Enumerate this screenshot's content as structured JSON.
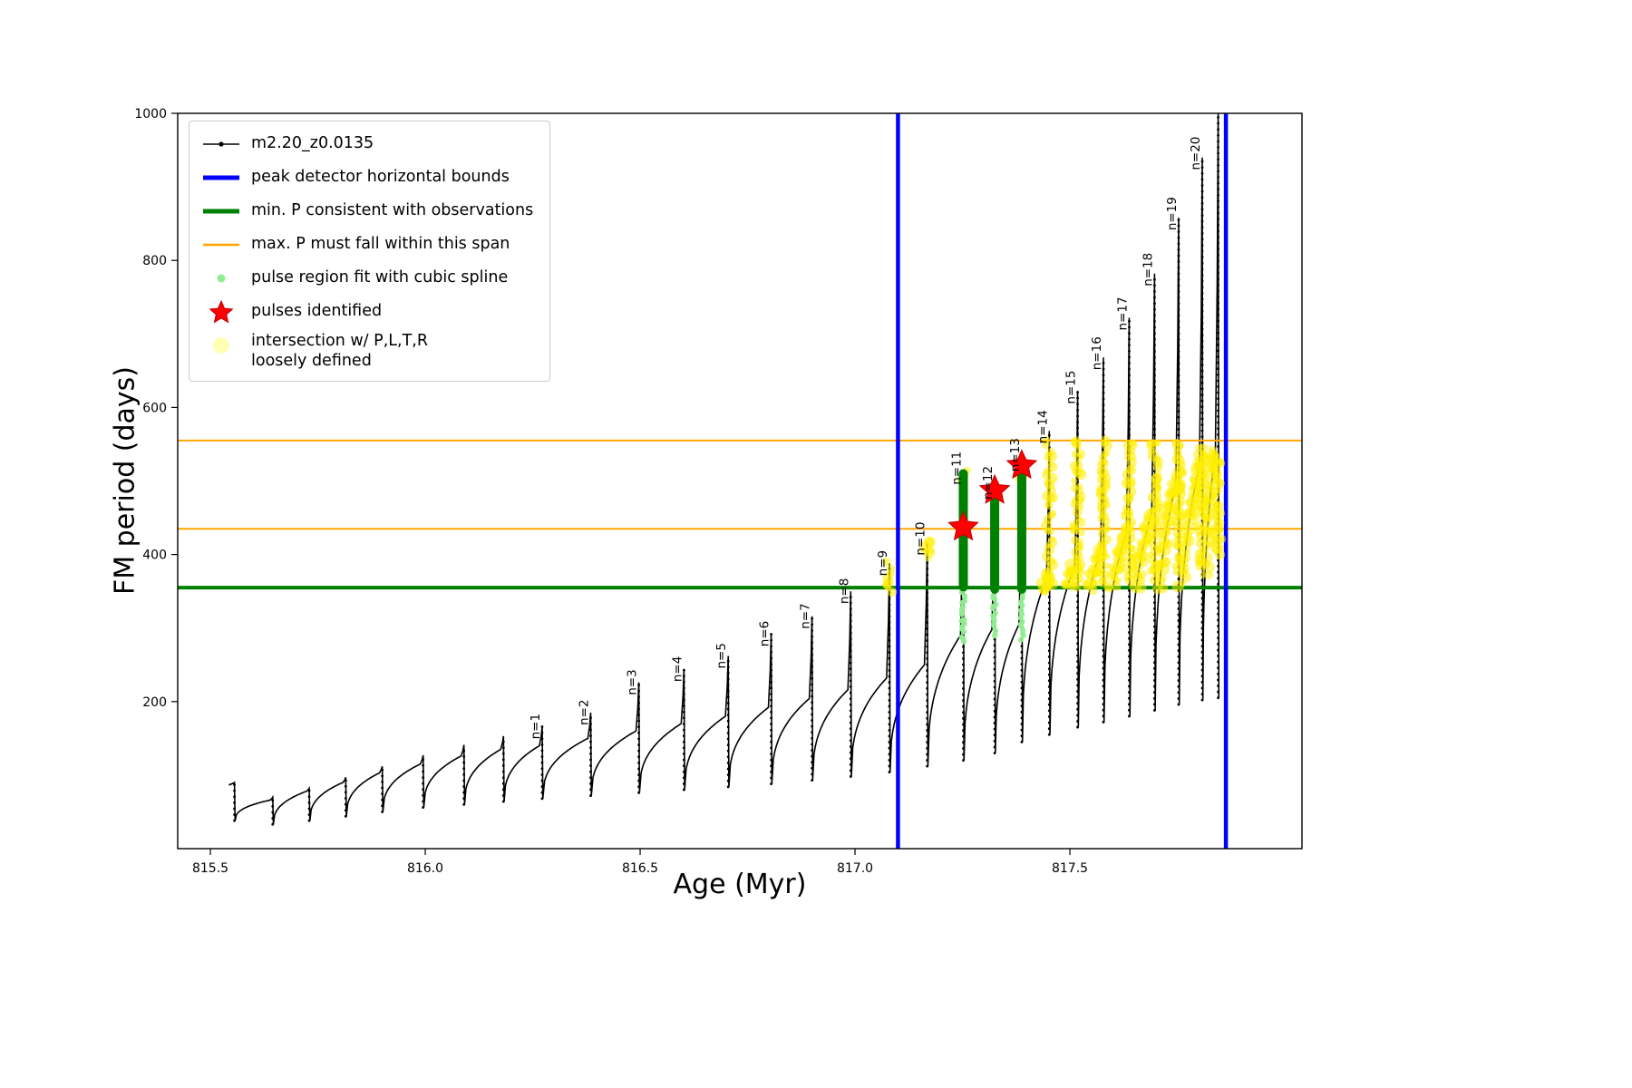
{
  "figure": {
    "xlabel": "Age (Myr)",
    "ylabel": "FM period (days)"
  },
  "legend": {
    "items": [
      {
        "label": "m2.20_z0.0135",
        "swatch": "line-dot"
      },
      {
        "label": "peak detector horizontal bounds",
        "swatch": "blue-line"
      },
      {
        "label": "min. P consistent with observations",
        "swatch": "green-line"
      },
      {
        "label": "max. P must fall within this span",
        "swatch": "orange-line"
      },
      {
        "label": "pulse region fit with cubic spline",
        "swatch": "lightgreen-dot"
      },
      {
        "label": "pulses identified",
        "swatch": "red-star"
      },
      {
        "label": "intersection w/ P,L,T,R",
        "label2": "loosely defined",
        "swatch": "yellow-dot"
      }
    ]
  },
  "chart_data": {
    "type": "line",
    "title": "",
    "series_label": "m2.20_z0.0135",
    "xlabel": "Age (Myr)",
    "ylabel": "FM period (days)",
    "xlim": [
      815.424,
      818.04
    ],
    "ylim": [
      0,
      1000
    ],
    "xticks": [
      815.5,
      816.0,
      816.5,
      817.0,
      817.5
    ],
    "yticks": [
      200,
      400,
      600,
      800,
      1000
    ],
    "grid": false,
    "legend_position": "upper left",
    "colors": {
      "series": "#000000",
      "blue": "#0000ff",
      "green": "#008000",
      "orange": "#ffa500",
      "lightgreen": "#90ee90",
      "yellow": "#ffef00",
      "yellow_pale": "#ffffb3",
      "red": "#ff0000"
    },
    "vlines_blue": [
      817.1,
      817.863
    ],
    "hline_green": 355,
    "hlines_orange": [
      435,
      555
    ],
    "pulses": [
      {
        "label": "",
        "age": 815.556,
        "peak": 90,
        "knee": 88,
        "dip_after": 38
      },
      {
        "label": "",
        "age": 815.645,
        "peak": 70,
        "knee": 66,
        "dip_after": 33
      },
      {
        "label": "",
        "age": 815.73,
        "peak": 82,
        "knee": 78,
        "dip_after": 38
      },
      {
        "label": "",
        "age": 815.815,
        "peak": 97,
        "knee": 90,
        "dip_after": 44
      },
      {
        "label": "",
        "age": 815.9,
        "peak": 112,
        "knee": 103,
        "dip_after": 50
      },
      {
        "label": "",
        "age": 815.995,
        "peak": 127,
        "knee": 115,
        "dip_after": 56
      },
      {
        "label": "",
        "age": 816.09,
        "peak": 141,
        "knee": 126,
        "dip_after": 60
      },
      {
        "label": "",
        "age": 816.182,
        "peak": 153,
        "knee": 135,
        "dip_after": 64
      },
      {
        "label": "n=1",
        "age": 816.272,
        "peak": 166,
        "knee": 140,
        "dip_after": 68
      },
      {
        "label": "n=2",
        "age": 816.385,
        "peak": 185,
        "knee": 150,
        "dip_after": 72
      },
      {
        "label": "n=3",
        "age": 816.497,
        "peak": 226,
        "knee": 160,
        "dip_after": 76
      },
      {
        "label": "n=4",
        "age": 816.602,
        "peak": 244,
        "knee": 170,
        "dip_after": 80
      },
      {
        "label": "n=5",
        "age": 816.705,
        "peak": 262,
        "knee": 180,
        "dip_after": 84
      },
      {
        "label": "n=6",
        "age": 816.805,
        "peak": 292,
        "knee": 192,
        "dip_after": 88
      },
      {
        "label": "n=7",
        "age": 816.9,
        "peak": 316,
        "knee": 204,
        "dip_after": 93
      },
      {
        "label": "n=8",
        "age": 816.99,
        "peak": 350,
        "knee": 216,
        "dip_after": 98
      },
      {
        "label": "n=9",
        "age": 817.08,
        "peak": 388,
        "knee": 232,
        "dip_after": 104
      },
      {
        "label": "n=10",
        "age": 817.168,
        "peak": 416,
        "knee": 250,
        "dip_after": 112
      },
      {
        "label": "n=11",
        "age": 817.252,
        "peak": 512,
        "knee": 290,
        "dip_after": 120
      },
      {
        "label": "n=12",
        "age": 817.325,
        "peak": 492,
        "knee": 298,
        "dip_after": 130
      },
      {
        "label": "n=13",
        "age": 817.388,
        "peak": 530,
        "knee": 305,
        "dip_after": 145
      },
      {
        "label": "n=14",
        "age": 817.452,
        "peak": 568,
        "knee": 368,
        "dip_after": 155
      },
      {
        "label": "n=15",
        "age": 817.518,
        "peak": 622,
        "knee": 385,
        "dip_after": 165
      },
      {
        "label": "n=16",
        "age": 817.578,
        "peak": 668,
        "knee": 405,
        "dip_after": 172
      },
      {
        "label": "n=17",
        "age": 817.638,
        "peak": 722,
        "knee": 432,
        "dip_after": 180
      },
      {
        "label": "n=18",
        "age": 817.697,
        "peak": 782,
        "knee": 458,
        "dip_after": 188
      },
      {
        "label": "n=19",
        "age": 817.753,
        "peak": 858,
        "knee": 496,
        "dip_after": 196
      },
      {
        "label": "n=20",
        "age": 817.808,
        "peak": 940,
        "knee": 522,
        "dip_after": 202
      },
      {
        "label": "",
        "age": 817.845,
        "peak": 1000,
        "knee": 540,
        "dip_after": 205
      }
    ],
    "red_stars": [
      {
        "age": 817.252,
        "period": 437
      },
      {
        "age": 817.325,
        "period": 487
      },
      {
        "age": 817.388,
        "period": 521
      }
    ],
    "green_bands": [
      {
        "age": 817.252,
        "v0": 356,
        "v1": 510
      },
      {
        "age": 817.325,
        "v0": 353,
        "v1": 490
      },
      {
        "age": 817.388,
        "v0": 353,
        "v1": 506
      }
    ],
    "lightgreen_columns": [
      {
        "age": 817.252,
        "v0": 281,
        "v1": 354
      },
      {
        "age": 817.325,
        "v0": 289,
        "v1": 352
      },
      {
        "age": 817.388,
        "v0": 285,
        "v1": 352
      }
    ],
    "yellow_strips": [
      {
        "age": 817.08,
        "v0": 352,
        "v1": 390
      },
      {
        "age": 817.168,
        "v0": 396,
        "v1": 420
      },
      {
        "age": 817.252,
        "v0": 500,
        "v1": 516
      },
      {
        "age": 817.388,
        "v0": 502,
        "v1": 528
      },
      {
        "age": 817.452,
        "v0": 356,
        "v1": 556
      },
      {
        "age": 817.518,
        "v0": 356,
        "v1": 556
      },
      {
        "age": 817.578,
        "v0": 360,
        "v1": 556
      },
      {
        "age": 817.638,
        "v0": 362,
        "v1": 556
      },
      {
        "age": 817.697,
        "v0": 368,
        "v1": 556
      },
      {
        "age": 817.753,
        "v0": 378,
        "v1": 556
      },
      {
        "age": 817.808,
        "v0": 388,
        "v1": 548
      },
      {
        "age": 817.845,
        "v0": 398,
        "v1": 540
      }
    ]
  }
}
